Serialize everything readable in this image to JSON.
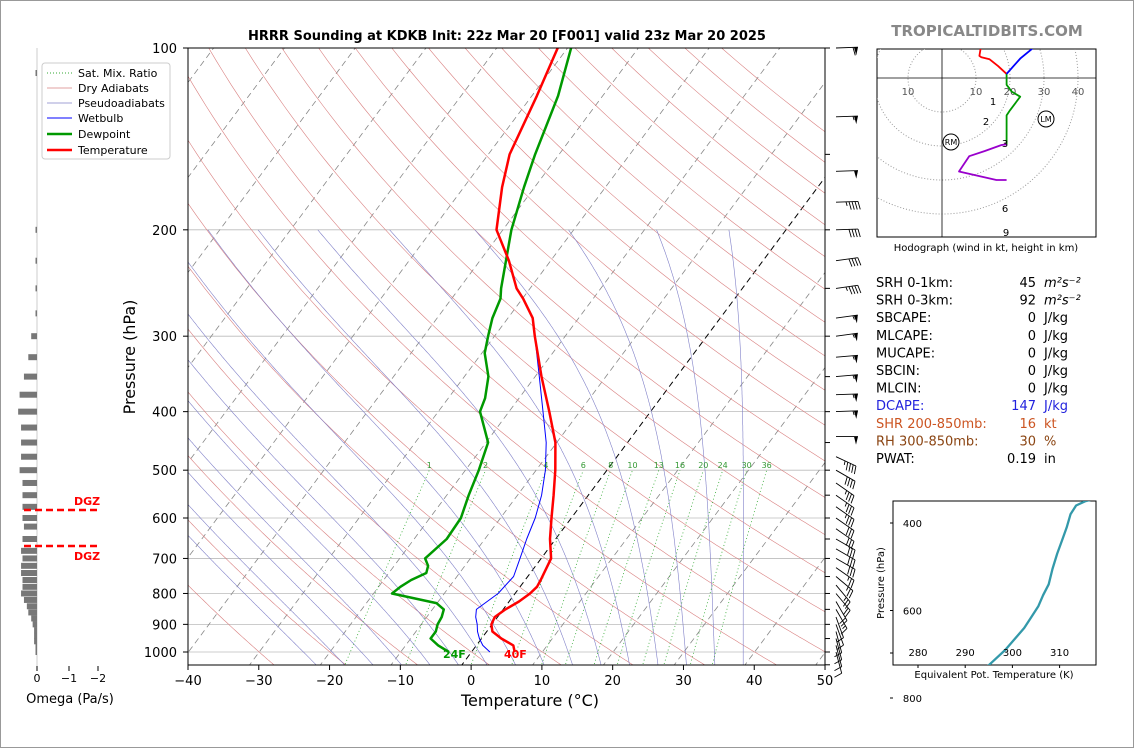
{
  "site": "TROPICALTIDBITS.COM",
  "chart_data": [
    {
      "type": "line",
      "name": "skewt",
      "title": "HRRR Sounding at KDKB Init: 22z Mar 20 [F001] valid 23z Mar 20 2025",
      "xlabel": "Temperature (°C)",
      "ylabel": "Pressure (hPa)",
      "xlim": [
        -40,
        50
      ],
      "ylim": [
        1050,
        100
      ],
      "y_scale": "log",
      "x_ticks": [
        -40,
        -30,
        -20,
        -10,
        0,
        10,
        20,
        30,
        40,
        50
      ],
      "y_ticks": [
        100,
        200,
        300,
        400,
        500,
        600,
        700,
        800,
        900,
        1000
      ],
      "legend": {
        "position": "top-left",
        "entries": [
          "Sat. Mix. Ratio",
          "Dry Adiabats",
          "Pseudoadiabats",
          "Wetbulb",
          "Dewpoint",
          "Temperature"
        ]
      },
      "colors": {
        "temperature": "#ff0000",
        "dewpoint": "#009900",
        "wetbulb": "#0000ff",
        "dry_adiabat": "#d98080",
        "pseudoadiabat": "#8080c8",
        "mixing_ratio": "#33aa33"
      },
      "mixing_ratio_labels": [
        "1",
        "2",
        "4",
        "6",
        "8",
        "10",
        "13",
        "16",
        "20",
        "24",
        "30",
        "36"
      ],
      "surface_labels": {
        "dewpoint": "24F",
        "temperature": "40F"
      },
      "dgz_label": "DGZ",
      "dgz_pressures": [
        583,
        675
      ],
      "series": [
        {
          "name": "Temperature",
          "points": [
            [
              6.1,
              1000
            ],
            [
              5.2,
              975
            ],
            [
              2.8,
              950
            ],
            [
              0.8,
              925
            ],
            [
              -0.1,
              900
            ],
            [
              -0.4,
              875
            ],
            [
              0.3,
              850
            ],
            [
              1.4,
              825
            ],
            [
              2.1,
              800
            ],
            [
              2.4,
              780
            ],
            [
              2.2,
              760
            ],
            [
              1.4,
              700
            ],
            [
              -0.8,
              650
            ],
            [
              -2.8,
              600
            ],
            [
              -4.9,
              550
            ],
            [
              -7.3,
              500
            ],
            [
              -10.2,
              450
            ],
            [
              -14.3,
              400
            ],
            [
              -19.1,
              350
            ],
            [
              -24.3,
              300
            ],
            [
              -26.5,
              280
            ],
            [
              -29.9,
              260
            ],
            [
              -31.9,
              250
            ],
            [
              -35.9,
              225
            ],
            [
              -40.9,
              200
            ],
            [
              -44.6,
              170
            ],
            [
              -47.0,
              150
            ],
            [
              -49.3,
              120
            ],
            [
              -51.4,
              100
            ]
          ]
        },
        {
          "name": "Dewpoint",
          "points": [
            [
              -3.2,
              1000
            ],
            [
              -5.4,
              975
            ],
            [
              -7.2,
              950
            ],
            [
              -7.2,
              925
            ],
            [
              -7.7,
              900
            ],
            [
              -7.9,
              875
            ],
            [
              -8.4,
              850
            ],
            [
              -10.1,
              830
            ],
            [
              -17.4,
              800
            ],
            [
              -16.9,
              780
            ],
            [
              -16.1,
              760
            ],
            [
              -14.7,
              740
            ],
            [
              -15.2,
              720
            ],
            [
              -16.4,
              700
            ],
            [
              -15.4,
              650
            ],
            [
              -15.6,
              600
            ],
            [
              -16.9,
              550
            ],
            [
              -18.1,
              500
            ],
            [
              -19.7,
              450
            ],
            [
              -24.1,
              400
            ],
            [
              -24.8,
              380
            ],
            [
              -26.6,
              350
            ],
            [
              -29.6,
              320
            ],
            [
              -30.9,
              300
            ],
            [
              -32.2,
              280
            ],
            [
              -33.1,
              260
            ],
            [
              -34.1,
              250
            ],
            [
              -38.8,
              200
            ],
            [
              -41.5,
              170
            ],
            [
              -43.4,
              150
            ],
            [
              -46.3,
              120
            ],
            [
              -49.5,
              100
            ]
          ]
        },
        {
          "name": "Wetbulb",
          "points": [
            [
              2.6,
              1000
            ],
            [
              0.9,
              975
            ],
            [
              -0.3,
              950
            ],
            [
              -1.3,
              925
            ],
            [
              -2.1,
              900
            ],
            [
              -3.1,
              875
            ],
            [
              -3.8,
              850
            ],
            [
              -2.4,
              800
            ],
            [
              -2.0,
              750
            ],
            [
              -3.0,
              700
            ],
            [
              -4.1,
              650
            ],
            [
              -5.1,
              600
            ],
            [
              -6.6,
              550
            ],
            [
              -8.7,
              500
            ],
            [
              -11.5,
              450
            ],
            [
              -15.2,
              400
            ],
            [
              -19.4,
              350
            ],
            [
              -24.3,
              300
            ],
            [
              -26.5,
              280
            ],
            [
              -29.9,
              260
            ],
            [
              -31.9,
              250
            ],
            [
              -35.9,
              225
            ],
            [
              -40.9,
              200
            ],
            [
              -44.6,
              170
            ],
            [
              -47.0,
              150
            ],
            [
              -49.3,
              120
            ],
            [
              -51.4,
              100
            ]
          ]
        }
      ]
    },
    {
      "type": "bar",
      "name": "omega",
      "xlabel": "Omega (Pa/s)",
      "x_ticks": [
        "0",
        "−1",
        "−2"
      ],
      "bars": [
        [
          1000,
          0.05
        ],
        [
          980,
          0.05
        ],
        [
          960,
          0.1
        ],
        [
          940,
          0.1
        ],
        [
          920,
          0.1
        ],
        [
          900,
          0.15
        ],
        [
          880,
          0.2
        ],
        [
          860,
          0.3
        ],
        [
          840,
          0.35
        ],
        [
          820,
          0.45
        ],
        [
          800,
          0.55
        ],
        [
          780,
          0.5
        ],
        [
          760,
          0.5
        ],
        [
          740,
          0.55
        ],
        [
          720,
          0.55
        ],
        [
          700,
          0.5
        ],
        [
          680,
          0.55
        ],
        [
          650,
          0.5
        ],
        [
          620,
          0.45
        ],
        [
          600,
          0.5
        ],
        [
          575,
          0.5
        ],
        [
          550,
          0.5
        ],
        [
          525,
          0.5
        ],
        [
          500,
          0.6
        ],
        [
          475,
          0.55
        ],
        [
          450,
          0.55
        ],
        [
          425,
          0.55
        ],
        [
          400,
          0.65
        ],
        [
          375,
          0.6
        ],
        [
          350,
          0.45
        ],
        [
          325,
          0.3
        ],
        [
          300,
          0.2
        ],
        [
          275,
          0.03
        ],
        [
          250,
          0.03
        ],
        [
          225,
          0.03
        ],
        [
          200,
          0.05
        ],
        [
          110,
          0.03
        ]
      ]
    },
    {
      "type": "line",
      "name": "hodograph",
      "xlabel": "Hodograph (wind in kt, height in km)",
      "ring_labels": [
        "10",
        "10",
        "20",
        "30",
        "40"
      ],
      "storm_motion_labels": [
        "RM",
        "LM"
      ],
      "height_labels": [
        "1",
        "2",
        "3",
        "6",
        "9"
      ],
      "segments": [
        {
          "color": "#ff0000",
          "points": [
            [
              7,
              16
            ],
            [
              10.5,
              13.5
            ],
            [
              12.5,
              11
            ],
            [
              11.5,
              9.5
            ],
            [
              11,
              6.5
            ],
            [
              11.6,
              6.1
            ],
            [
              14,
              5.5
            ],
            [
              16.5,
              3.5
            ],
            [
              19,
              1.2
            ]
          ]
        },
        {
          "color": "#009900",
          "points": [
            [
              19,
              1.2
            ],
            [
              19,
              -2
            ],
            [
              20.5,
              -4
            ],
            [
              23,
              -5.5
            ],
            [
              20,
              -9.5
            ],
            [
              19,
              -11
            ],
            [
              19,
              -19.5
            ]
          ]
        },
        {
          "color": "#0000ff",
          "points": [
            [
              19,
              1.2
            ],
            [
              23,
              5.7
            ],
            [
              27,
              9
            ],
            [
              29,
              11
            ],
            [
              30.5,
              15.5
            ],
            [
              31.5,
              18.5
            ]
          ]
        },
        {
          "color": "#9900cc",
          "points": [
            [
              19,
              -19.5
            ],
            [
              17.5,
              -19.7
            ],
            [
              12.5,
              -21.5
            ],
            [
              8,
              -23
            ],
            [
              6,
              -26
            ],
            [
              5,
              -27.5
            ],
            [
              16,
              -30
            ],
            [
              19,
              -30
            ]
          ]
        }
      ]
    },
    {
      "type": "line",
      "name": "theta_e",
      "xlabel": "Equivalent Pot. Temperature (K)",
      "ylabel": "Pressure (hPa)",
      "x_ticks": [
        280,
        290,
        300,
        310
      ],
      "y_ticks": [
        400,
        600,
        800
      ],
      "color": "#3399aa",
      "points": [
        [
          287.2,
          960
        ],
        [
          285.8,
          940
        ],
        [
          285.3,
          900
        ],
        [
          285.2,
          860
        ],
        [
          285.5,
          830
        ],
        [
          287.0,
          810
        ],
        [
          289.5,
          790
        ],
        [
          291.5,
          765
        ],
        [
          293.5,
          740
        ],
        [
          296.0,
          715
        ],
        [
          298.5,
          690
        ],
        [
          300.5,
          665
        ],
        [
          302.5,
          640
        ],
        [
          304.0,
          615
        ],
        [
          305.5,
          590
        ],
        [
          306.5,
          565
        ],
        [
          307.7,
          540
        ],
        [
          308.5,
          505
        ],
        [
          309.5,
          470
        ],
        [
          310.5,
          440
        ],
        [
          311.5,
          410
        ],
        [
          312.3,
          380
        ],
        [
          313.5,
          360
        ],
        [
          315.5,
          350
        ],
        [
          317.5,
          345
        ]
      ]
    }
  ],
  "stats": [
    {
      "label": "SRH 0-1km:",
      "value": "45",
      "unit": "m²s⁻²",
      "color": "#000000"
    },
    {
      "label": "SRH 0-3km:",
      "value": "92",
      "unit": "m²s⁻²",
      "color": "#000000"
    },
    {
      "label": "SBCAPE:",
      "value": "0",
      "unit": "J/kg",
      "color": "#000000"
    },
    {
      "label": "MLCAPE:",
      "value": "0",
      "unit": "J/kg",
      "color": "#000000"
    },
    {
      "label": "MUCAPE:",
      "value": "0",
      "unit": "J/kg",
      "color": "#000000"
    },
    {
      "label": "SBCIN:",
      "value": "0",
      "unit": "J/kg",
      "color": "#000000"
    },
    {
      "label": "MLCIN:",
      "value": "0",
      "unit": "J/kg",
      "color": "#000000"
    },
    {
      "label": "DCAPE:",
      "value": "147",
      "unit": "J/kg",
      "color": "#2222dd"
    },
    {
      "label": "SHR 200-850mb:",
      "value": "16",
      "unit": "kt",
      "color": "#cc5522"
    },
    {
      "label": "RH 300-850mb:",
      "value": "30",
      "unit": "%",
      "color": "#8b4513"
    },
    {
      "label": "PWAT:",
      "value": "0.19",
      "unit": "in",
      "color": "#000000"
    }
  ],
  "wind_barbs": [
    {
      "p": 100,
      "dir": 268,
      "spd": 60
    },
    {
      "p": 130,
      "dir": 268,
      "spd": 55
    },
    {
      "p": 160,
      "dir": 268,
      "spd": 50
    },
    {
      "p": 180,
      "dir": 268,
      "spd": 45
    },
    {
      "p": 200,
      "dir": 268,
      "spd": 40
    },
    {
      "p": 225,
      "dir": 262,
      "spd": 40
    },
    {
      "p": 250,
      "dir": 262,
      "spd": 45
    },
    {
      "p": 280,
      "dir": 262,
      "spd": 55
    },
    {
      "p": 300,
      "dir": 262,
      "spd": 55
    },
    {
      "p": 325,
      "dir": 265,
      "spd": 55
    },
    {
      "p": 350,
      "dir": 265,
      "spd": 55
    },
    {
      "p": 375,
      "dir": 268,
      "spd": 55
    },
    {
      "p": 400,
      "dir": 268,
      "spd": 55
    },
    {
      "p": 440,
      "dir": 270,
      "spd": 50
    },
    {
      "p": 475,
      "dir": 295,
      "spd": 45
    },
    {
      "p": 500,
      "dir": 300,
      "spd": 40
    },
    {
      "p": 525,
      "dir": 305,
      "spd": 35
    },
    {
      "p": 550,
      "dir": 305,
      "spd": 35
    },
    {
      "p": 575,
      "dir": 305,
      "spd": 35
    },
    {
      "p": 600,
      "dir": 305,
      "spd": 30
    },
    {
      "p": 625,
      "dir": 305,
      "spd": 30
    },
    {
      "p": 650,
      "dir": 300,
      "spd": 30
    },
    {
      "p": 675,
      "dir": 300,
      "spd": 30
    },
    {
      "p": 700,
      "dir": 300,
      "spd": 30
    },
    {
      "p": 725,
      "dir": 305,
      "spd": 25
    },
    {
      "p": 750,
      "dir": 310,
      "spd": 25
    },
    {
      "p": 775,
      "dir": 320,
      "spd": 25
    },
    {
      "p": 800,
      "dir": 320,
      "spd": 20
    },
    {
      "p": 825,
      "dir": 330,
      "spd": 20
    },
    {
      "p": 850,
      "dir": 330,
      "spd": 15
    },
    {
      "p": 875,
      "dir": 340,
      "spd": 10
    },
    {
      "p": 900,
      "dir": 340,
      "spd": 10
    },
    {
      "p": 925,
      "dir": 345,
      "spd": 10
    },
    {
      "p": 950,
      "dir": 345,
      "spd": 10
    },
    {
      "p": 975,
      "dir": 345,
      "spd": 10
    },
    {
      "p": 1000,
      "dir": 345,
      "spd": 10
    }
  ]
}
